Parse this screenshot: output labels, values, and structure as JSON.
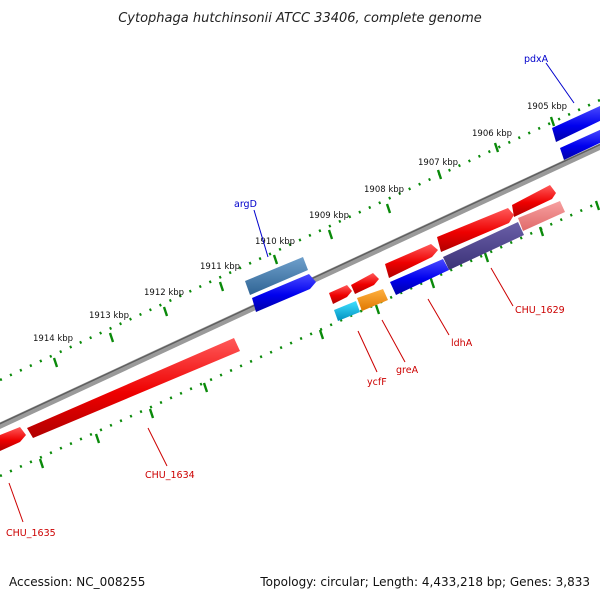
{
  "title": "Cytophaga hutchinsonii ATCC 33406, complete genome",
  "footer": {
    "accession": "Accession: NC_008255",
    "stats": "Topology: circular; Length: 4,433,218 bp; Genes: 3,833"
  },
  "colors": {
    "forward_gene": "#ff0000",
    "reverse_gene": "#0000ff",
    "backbone": "#888888",
    "tick": "#008000",
    "red_label": "#cc0000",
    "blue_label": "#0000cc"
  },
  "ticks": [
    "1905 kbp",
    "1906 kbp",
    "1907 kbp",
    "1908 kbp",
    "1909 kbp",
    "1910 kbp",
    "1911 kbp",
    "1912 kbp",
    "1913 kbp",
    "1914 kbp"
  ],
  "gene_labels": {
    "pdxA": "pdxA",
    "argD": "argD",
    "CHU_1629": "CHU_1629",
    "ldhA": "ldhA",
    "greA": "greA",
    "ycfF": "ycfF",
    "CHU_1634": "CHU_1634",
    "CHU_1635": "CHU_1635"
  }
}
